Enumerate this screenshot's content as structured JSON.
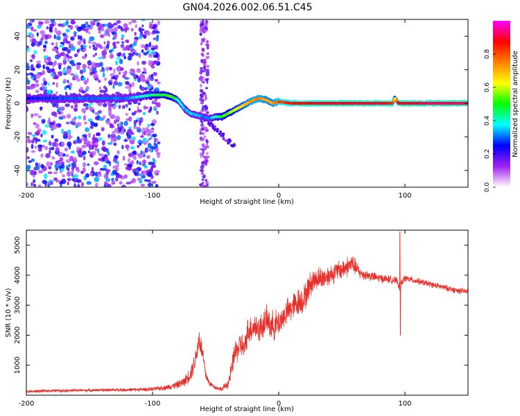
{
  "title": "GN04.2026.002.06.51.C45",
  "chart_data": [
    {
      "type": "heatmap",
      "xlabel": "Height of straight line (km)",
      "ylabel": "Frequency (Hz)",
      "xlim": [
        -200,
        150
      ],
      "ylim": [
        -50,
        50
      ],
      "x_ticks": [
        "-200",
        "-100",
        "0",
        "100"
      ],
      "y_ticks": [
        "-40",
        "-20",
        "0",
        "20",
        "40"
      ],
      "colorbar": {
        "label": "Normalized spectral amplitude",
        "range": [
          0,
          1
        ],
        "ticks": [
          "0.0",
          "0.2",
          "0.4",
          "0.6",
          "0.8"
        ],
        "colors": [
          "#ffffff",
          "#a020f0",
          "#0000ff",
          "#00ffff",
          "#00ff00",
          "#ffff00",
          "#ff8000",
          "#ff0000",
          "#ff00ff"
        ]
      },
      "ridge": {
        "x": [
          -200,
          -160,
          -120,
          -100,
          -90,
          -85,
          -80,
          -75,
          -70,
          -65,
          -60,
          -55,
          -50,
          -45,
          -40,
          -35,
          -30,
          -25,
          -20,
          -15,
          -10,
          -5,
          0,
          10,
          20,
          40,
          60,
          80,
          90,
          92,
          95,
          100,
          120,
          150
        ],
        "freq": [
          3,
          3,
          3,
          5,
          5,
          4,
          2,
          -3,
          -6,
          -7,
          -8,
          -9,
          -8,
          -8,
          -6,
          -4,
          -2,
          0,
          2,
          3,
          2,
          0,
          1,
          0,
          0,
          0,
          0,
          0,
          0,
          3,
          0,
          0,
          0,
          0
        ],
        "amplitude": [
          0.25,
          0.3,
          0.3,
          0.45,
          0.5,
          0.55,
          0.4,
          0.35,
          0.35,
          0.35,
          0.3,
          0.3,
          0.4,
          0.5,
          0.55,
          0.6,
          0.65,
          0.7,
          0.75,
          0.75,
          0.7,
          0.7,
          0.8,
          0.85,
          0.88,
          0.9,
          0.9,
          0.9,
          0.85,
          0.6,
          0.88,
          0.9,
          0.92,
          0.92
        ]
      }
    },
    {
      "type": "line",
      "xlabel": "Height of straight line (km)",
      "ylabel": "SNR (10 * v/v)",
      "xlim": [
        -200,
        150
      ],
      "ylim": [
        0,
        5500
      ],
      "x_ticks": [
        "-200",
        "-100",
        "0",
        "100"
      ],
      "y_ticks": [
        "1000",
        "2000",
        "3000",
        "4000",
        "5000"
      ],
      "color": "#e8302a",
      "series": [
        {
          "x": [
            -200,
            -180,
            -160,
            -140,
            -120,
            -100,
            -90,
            -80,
            -75,
            -70,
            -66,
            -63,
            -60,
            -58,
            -55,
            -50,
            -45,
            -40,
            -37,
            -35,
            -33,
            -30,
            -27,
            -25,
            -20,
            -15,
            -10,
            -5,
            0,
            5,
            10,
            15,
            20,
            25,
            30,
            35,
            40,
            45,
            50,
            55,
            58,
            60,
            65,
            70,
            80,
            90,
            94,
            96,
            97,
            98,
            100,
            110,
            120,
            130,
            140,
            150
          ],
          "y": [
            120,
            150,
            160,
            170,
            180,
            200,
            250,
            350,
            450,
            700,
            1200,
            1900,
            1300,
            700,
            400,
            250,
            200,
            400,
            900,
            1400,
            1500,
            1700,
            1500,
            2100,
            2300,
            2200,
            2500,
            2300,
            2400,
            2700,
            2900,
            3100,
            3200,
            3700,
            3900,
            3900,
            4000,
            4100,
            4200,
            4300,
            4400,
            4300,
            4050,
            4000,
            3900,
            3850,
            3800,
            3500,
            3700,
            3800,
            3900,
            3800,
            3700,
            3600,
            3500,
            3450
          ],
          "noise": [
            60,
            60,
            60,
            60,
            70,
            80,
            100,
            150,
            200,
            300,
            400,
            500,
            400,
            250,
            120,
            80,
            80,
            200,
            400,
            500,
            500,
            500,
            500,
            550,
            550,
            550,
            550,
            600,
            550,
            500,
            550,
            550,
            550,
            500,
            450,
            450,
            400,
            400,
            400,
            400,
            400,
            350,
            250,
            200,
            180,
            150,
            150,
            150,
            150,
            150,
            140,
            130,
            120,
            120,
            120,
            120
          ]
        }
      ],
      "spikes": [
        {
          "x": 96,
          "y": 5450
        },
        {
          "x": 96.5,
          "y": 2000
        }
      ]
    }
  ]
}
